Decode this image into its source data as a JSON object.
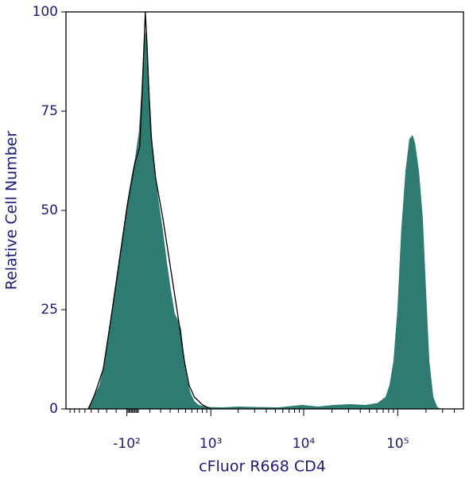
{
  "chart_data": {
    "type": "area",
    "xlabel": "cFluor R668 CD4",
    "ylabel": "Relative Cell Number",
    "xscale": "biexponential",
    "xlim": [
      -1000,
      500000
    ],
    "ylim": [
      0,
      100
    ],
    "xticks": [
      {
        "value": -100,
        "label": "-10²"
      },
      {
        "value": 1000,
        "label": "10³"
      },
      {
        "value": 10000,
        "label": "10⁴"
      },
      {
        "value": 100000,
        "label": "10⁵"
      }
    ],
    "xminorticks": [
      -900,
      -800,
      -700,
      -600,
      -500,
      -400,
      -300,
      -200,
      -90,
      -80,
      -70,
      -60,
      -50,
      -40,
      -30,
      -20,
      -10,
      0,
      100,
      200,
      300,
      400,
      500,
      600,
      700,
      800,
      900,
      2000,
      3000,
      4000,
      5000,
      6000,
      7000,
      8000,
      9000,
      20000,
      30000,
      40000,
      50000,
      60000,
      70000,
      80000,
      90000,
      200000,
      300000,
      400000
    ],
    "yticks": [
      0,
      25,
      50,
      75,
      100
    ],
    "series": [
      {
        "color": "#2e7b72",
        "fill": true,
        "x": [
          -561,
          -465,
          -388,
          -340,
          -294,
          -251,
          -210,
          -171,
          -134,
          -98,
          -63,
          -29,
          5,
          26,
          39,
          53,
          67,
          81,
          95,
          124,
          153,
          183,
          223,
          264,
          308,
          355,
          405,
          437,
          483,
          531,
          579,
          645,
          724,
          896,
          1349,
          2009,
          2982,
          5360,
          9600,
          14200,
          20900,
          30900,
          45600,
          61000,
          74100,
          81700,
          90000,
          99200,
          109000,
          121000,
          133000,
          144000,
          153000,
          168000,
          185000,
          200000,
          217000,
          239000,
          263000,
          290000
        ],
        "values": [
          0,
          3,
          6,
          10,
          17,
          24,
          31,
          38,
          45,
          52,
          58,
          63,
          70,
          80,
          88,
          93,
          96,
          90,
          80,
          66,
          58,
          52,
          45,
          37,
          30,
          24,
          22,
          20,
          12,
          7,
          4,
          2,
          1,
          0.5,
          0.4,
          0.6,
          0.5,
          0.4,
          1,
          0.6,
          1,
          1.2,
          1,
          1.5,
          3,
          6,
          12,
          25,
          45,
          60,
          68,
          69,
          67,
          60,
          48,
          30,
          12,
          3,
          0.5,
          0
        ]
      },
      {
        "color": "#000000",
        "fill": false,
        "x": [
          -539,
          -443,
          -340,
          -251,
          -171,
          -98,
          -29,
          12,
          33,
          46,
          60,
          74,
          88,
          110,
          153,
          223,
          308,
          405,
          483,
          554,
          645,
          805,
          994
        ],
        "values": [
          0,
          4,
          10,
          23,
          37,
          51,
          62,
          66,
          80,
          90,
          100,
          92,
          82,
          69,
          58,
          48,
          35,
          22,
          12,
          6,
          3,
          1,
          0
        ]
      }
    ]
  }
}
